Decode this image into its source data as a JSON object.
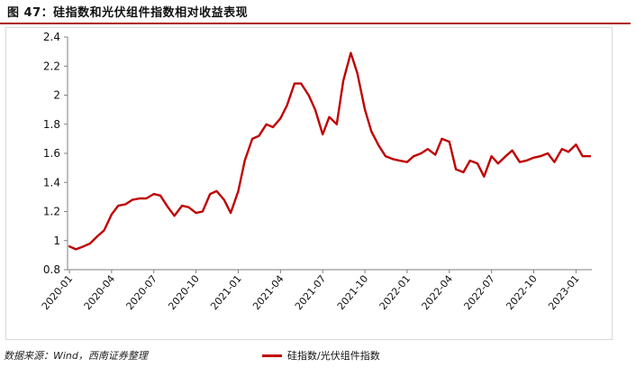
{
  "figure": {
    "title": "图 47：硅指数和光伏组件指数相对收益表现",
    "source": "数据来源：Wind，西南证券整理"
  },
  "colors": {
    "line": "#c00000",
    "accent_rule": "#b01818",
    "frame": "#d9d9d9"
  },
  "chart_data": {
    "type": "line",
    "title": "",
    "xlabel": "",
    "ylabel": "",
    "ylim": [
      0.8,
      2.4
    ],
    "yticks": [
      0.8,
      1,
      1.2,
      1.4,
      1.6,
      1.8,
      2,
      2.2,
      2.4
    ],
    "ytick_labels": [
      "0.8",
      "1",
      "1.2",
      "1.4",
      "1.6",
      "1.8",
      "2",
      "2.2",
      "2.4"
    ],
    "xticks": [
      "2020-01",
      "2020-04",
      "2020-07",
      "2020-10",
      "2021-01",
      "2021-04",
      "2021-07",
      "2021-10",
      "2022-01",
      "2022-04",
      "2022-07",
      "2022-10",
      "2023-01"
    ],
    "grid": false,
    "legend": "bottom-center",
    "series": [
      {
        "name": "硅指数/光伏组件指数",
        "x": [
          "2020-01",
          "2020-01-15",
          "2020-02",
          "2020-02-15",
          "2020-03",
          "2020-03-15",
          "2020-04",
          "2020-04-15",
          "2020-05",
          "2020-05-15",
          "2020-06",
          "2020-06-15",
          "2020-07",
          "2020-07-15",
          "2020-08",
          "2020-08-15",
          "2020-09",
          "2020-09-15",
          "2020-10",
          "2020-10-15",
          "2020-11",
          "2020-11-15",
          "2020-12",
          "2020-12-15",
          "2021-01",
          "2021-01-15",
          "2021-02",
          "2021-02-15",
          "2021-03",
          "2021-03-15",
          "2021-04",
          "2021-04-15",
          "2021-05",
          "2021-05-15",
          "2021-06",
          "2021-06-15",
          "2021-07",
          "2021-07-15",
          "2021-08",
          "2021-08-15",
          "2021-09",
          "2021-09-15",
          "2021-10",
          "2021-10-15",
          "2021-11",
          "2021-11-15",
          "2021-12",
          "2021-12-15",
          "2022-01",
          "2022-01-15",
          "2022-02",
          "2022-02-15",
          "2022-03",
          "2022-03-15",
          "2022-04",
          "2022-04-15",
          "2022-05",
          "2022-05-15",
          "2022-06",
          "2022-06-15",
          "2022-07",
          "2022-07-15",
          "2022-08",
          "2022-08-15",
          "2022-09",
          "2022-09-15",
          "2022-10",
          "2022-10-15",
          "2022-11",
          "2022-11-15",
          "2022-12",
          "2022-12-15",
          "2023-01",
          "2023-01-15",
          "2023-02"
        ],
        "values": [
          0.96,
          0.94,
          0.96,
          0.98,
          1.03,
          1.07,
          1.18,
          1.24,
          1.25,
          1.28,
          1.29,
          1.29,
          1.32,
          1.31,
          1.23,
          1.17,
          1.24,
          1.23,
          1.19,
          1.2,
          1.32,
          1.34,
          1.28,
          1.19,
          1.34,
          1.55,
          1.7,
          1.72,
          1.8,
          1.78,
          1.84,
          1.93,
          2.08,
          2.08,
          2.0,
          1.9,
          1.73,
          1.85,
          1.8,
          2.1,
          2.29,
          2.15,
          1.9,
          1.75,
          1.65,
          1.58,
          1.56,
          1.55,
          1.54,
          1.58,
          1.6,
          1.63,
          1.59,
          1.7,
          1.68,
          1.49,
          1.47,
          1.55,
          1.53,
          1.44,
          1.58,
          1.53,
          1.58,
          1.62,
          1.54,
          1.55,
          1.57,
          1.58,
          1.6,
          1.54,
          1.63,
          1.61,
          1.66,
          1.58,
          1.58
        ]
      }
    ]
  }
}
